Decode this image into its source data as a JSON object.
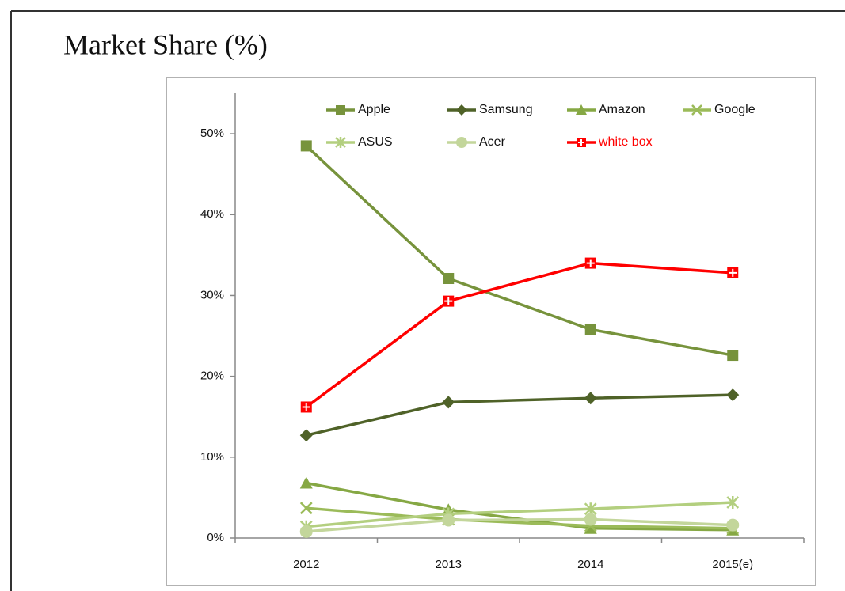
{
  "chart_data": {
    "type": "line",
    "title": "Market Share (%)",
    "categories": [
      "2012",
      "2013",
      "2014",
      "2015(e)"
    ],
    "series": [
      {
        "name": "Apple",
        "color": "#77933c",
        "marker": "square",
        "values": [
          48.5,
          32.1,
          25.8,
          22.6
        ]
      },
      {
        "name": "Samsung",
        "color": "#4f6228",
        "marker": "diamond",
        "values": [
          12.7,
          16.8,
          17.3,
          17.7
        ]
      },
      {
        "name": "Amazon",
        "color": "#86a844",
        "marker": "triangle",
        "values": [
          6.8,
          3.5,
          1.2,
          1.0
        ]
      },
      {
        "name": "Google",
        "color": "#9bbb59",
        "marker": "x",
        "values": [
          3.7,
          2.3,
          1.5,
          1.2
        ]
      },
      {
        "name": "ASUS",
        "color": "#b3cf7f",
        "marker": "star",
        "values": [
          1.4,
          3.0,
          3.6,
          4.4
        ]
      },
      {
        "name": "Acer",
        "color": "#c3d69b",
        "marker": "circle",
        "values": [
          0.8,
          2.2,
          2.3,
          1.6
        ]
      },
      {
        "name": "white box",
        "color": "#ff0000",
        "marker": "square-plus",
        "values": [
          16.2,
          29.3,
          34.0,
          32.8
        ]
      }
    ],
    "ylim": [
      0,
      55
    ],
    "yticks": [
      {
        "value": 0,
        "label": "0%"
      },
      {
        "value": 10,
        "label": "10%"
      },
      {
        "value": 20,
        "label": "20%"
      },
      {
        "value": 30,
        "label": "30%"
      },
      {
        "value": 40,
        "label": "40%"
      },
      {
        "value": 50,
        "label": "50%"
      }
    ],
    "grid": false,
    "legend": "top"
  }
}
